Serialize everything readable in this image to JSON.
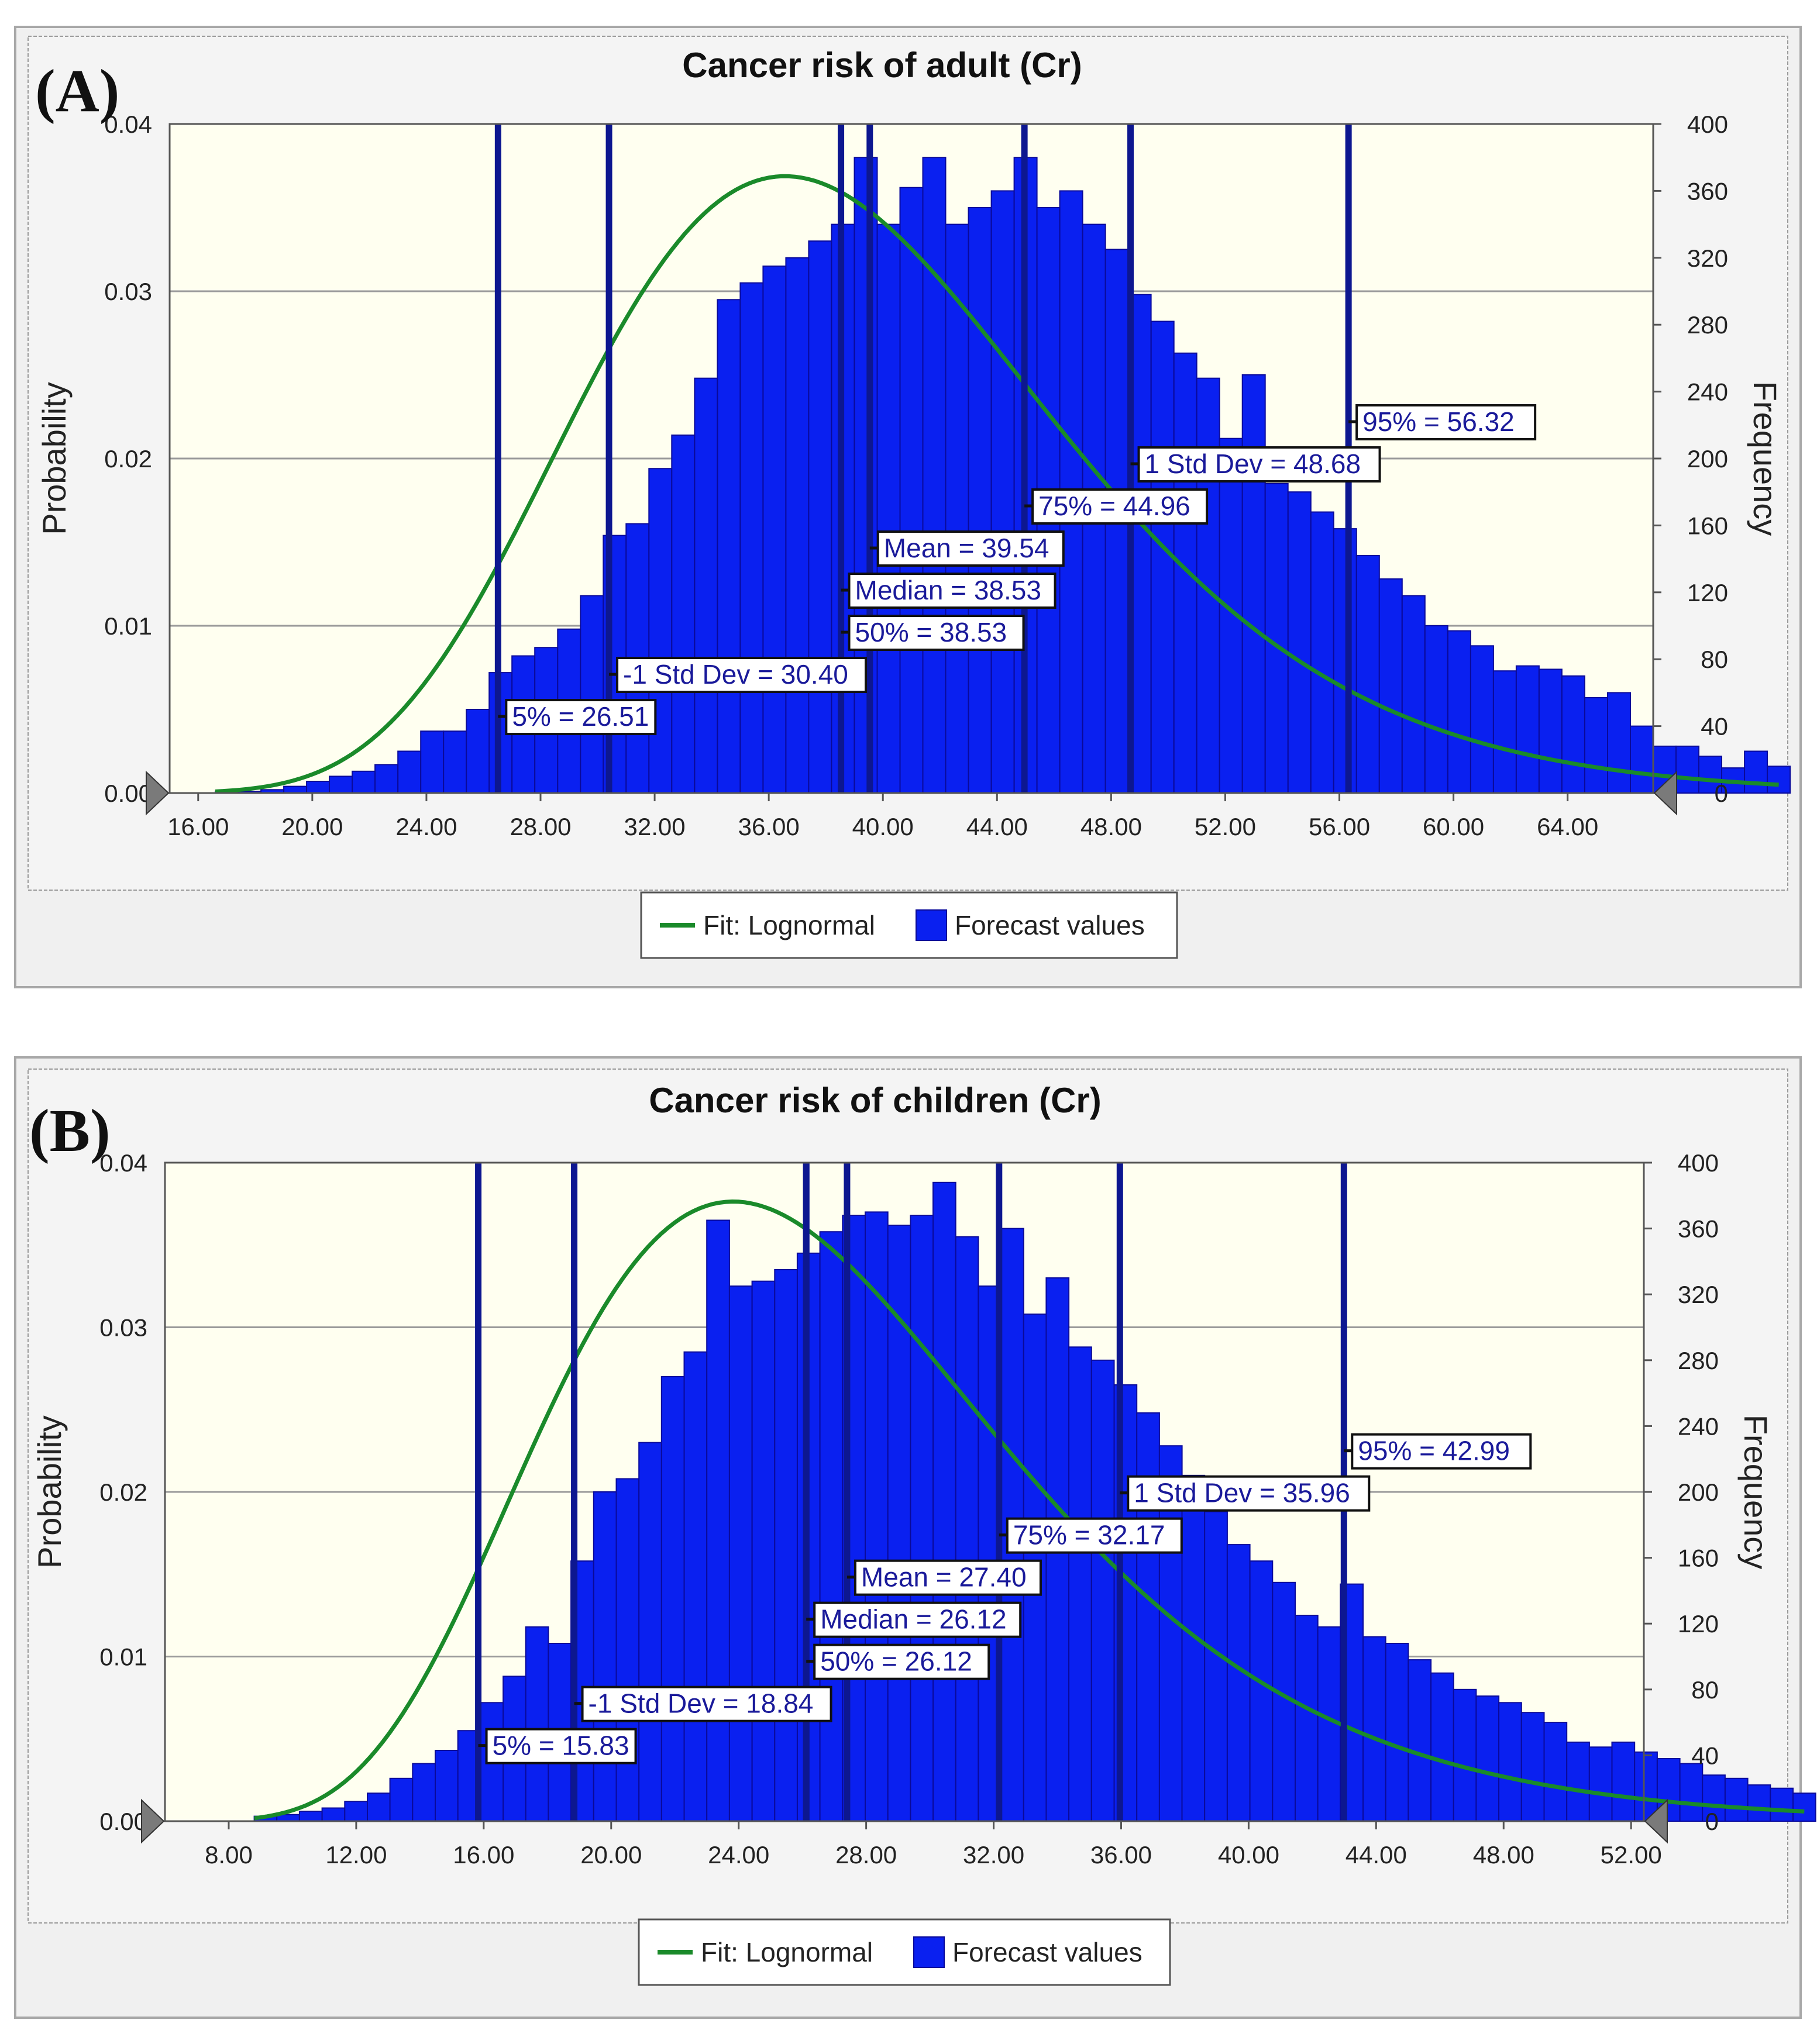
{
  "colors": {
    "bar": "#0a20f0",
    "fit": "#1a8a2a",
    "marker_line": "#0d1790",
    "plot_background": "#fffff0"
  },
  "chart_data": [
    {
      "panel_label": "(A)",
      "type": "bar",
      "title": "Cancer risk of adult (Cr)",
      "ylabel": "Probability",
      "y2label": "Frequency",
      "xlim": [
        15.0,
        67.0
      ],
      "ylim": [
        0,
        0.04
      ],
      "y2lim": [
        0,
        400
      ],
      "x_ticks": [
        "16.00",
        "20.00",
        "24.00",
        "28.00",
        "32.00",
        "36.00",
        "40.00",
        "44.00",
        "48.00",
        "52.00",
        "56.00",
        "60.00",
        "64.00"
      ],
      "y_ticks": [
        "0.00",
        "0.01",
        "0.02",
        "0.03",
        "0.04"
      ],
      "y2_ticks": [
        "0",
        "40",
        "80",
        "120",
        "160",
        "200",
        "240",
        "280",
        "320",
        "360",
        "400"
      ],
      "bin_start": 16.6,
      "bin_width": 0.8,
      "frequencies": [
        1,
        1,
        2,
        4,
        7,
        10,
        13,
        17,
        25,
        37,
        37,
        50,
        72,
        82,
        87,
        98,
        118,
        154,
        161,
        194,
        214,
        248,
        295,
        305,
        315,
        320,
        330,
        340,
        380,
        340,
        362,
        380,
        340,
        350,
        360,
        380,
        350,
        360,
        340,
        325,
        298,
        282,
        263,
        248,
        212,
        250,
        185,
        180,
        168,
        158,
        142,
        128,
        118,
        100,
        97,
        88,
        73,
        76,
        74,
        70,
        57,
        60,
        40,
        28,
        28,
        22,
        15,
        25,
        16
      ],
      "fit": {
        "type": "lognormal",
        "label": "Fit: Lognormal",
        "mean": 39.54,
        "sd": 9.14,
        "peak_x": 36.3
      },
      "markers": [
        {
          "label": "5% = 26.51",
          "x": 26.51,
          "rank": 0
        },
        {
          "label": "-1 Std Dev = 30.40",
          "x": 30.4,
          "rank": 1
        },
        {
          "label": "50% = 38.53",
          "x": 38.53,
          "rank": 2
        },
        {
          "label": "Median = 38.53",
          "x": 38.53,
          "rank": 3
        },
        {
          "label": "Mean = 39.54",
          "x": 39.54,
          "rank": 4
        },
        {
          "label": "75% = 44.96",
          "x": 44.96,
          "rank": 5
        },
        {
          "label": "1 Std Dev = 48.68",
          "x": 48.68,
          "rank": 6
        },
        {
          "label": "95% = 56.32",
          "x": 56.32,
          "rank": 7
        }
      ],
      "legend": {
        "fit_label": "Fit: Lognormal",
        "bars_label": "Forecast values",
        "placement": "bottom-center"
      }
    },
    {
      "panel_label": "(B)",
      "type": "bar",
      "title": "Cancer risk of children (Cr)",
      "ylabel": "Probability",
      "y2label": "Frequency",
      "xlim": [
        6.0,
        52.4
      ],
      "ylim": [
        0,
        0.04
      ],
      "y2lim": [
        0,
        400
      ],
      "x_ticks": [
        "8.00",
        "12.00",
        "16.00",
        "20.00",
        "24.00",
        "28.00",
        "32.00",
        "36.00",
        "40.00",
        "44.00",
        "48.00",
        "52.00"
      ],
      "y_ticks": [
        "0.00",
        "0.01",
        "0.02",
        "0.03",
        "0.04"
      ],
      "y2_ticks": [
        "0",
        "40",
        "80",
        "120",
        "160",
        "200",
        "240",
        "280",
        "320",
        "360",
        "400"
      ],
      "bin_start": 8.8,
      "bin_width": 0.71,
      "frequencies": [
        3,
        4,
        6,
        8,
        12,
        17,
        26,
        35,
        43,
        55,
        72,
        88,
        118,
        108,
        158,
        200,
        208,
        230,
        270,
        285,
        365,
        325,
        328,
        335,
        345,
        358,
        368,
        370,
        362,
        368,
        388,
        355,
        325,
        360,
        308,
        330,
        288,
        280,
        265,
        248,
        228,
        210,
        188,
        168,
        158,
        145,
        125,
        118,
        144,
        112,
        108,
        98,
        90,
        80,
        76,
        72,
        66,
        60,
        48,
        45,
        48,
        42,
        38,
        35,
        28,
        26,
        22,
        20,
        17
      ],
      "fit": {
        "type": "lognormal",
        "label": "Fit: Lognormal",
        "mean": 27.4,
        "sd": 8.56,
        "peak_x": 23.8
      },
      "markers": [
        {
          "label": "5% = 15.83",
          "x": 15.83,
          "rank": 0
        },
        {
          "label": "-1 Std Dev = 18.84",
          "x": 18.84,
          "rank": 1
        },
        {
          "label": "50% = 26.12",
          "x": 26.12,
          "rank": 2
        },
        {
          "label": "Median = 26.12",
          "x": 26.12,
          "rank": 3
        },
        {
          "label": "Mean = 27.40",
          "x": 27.4,
          "rank": 4
        },
        {
          "label": "75% = 32.17",
          "x": 32.17,
          "rank": 5
        },
        {
          "label": "1 Std Dev = 35.96",
          "x": 35.96,
          "rank": 6
        },
        {
          "label": "95% = 42.99",
          "x": 42.99,
          "rank": 7
        }
      ],
      "legend": {
        "fit_label": "Fit: Lognormal",
        "bars_label": "Forecast values",
        "placement": "bottom-center"
      }
    }
  ]
}
